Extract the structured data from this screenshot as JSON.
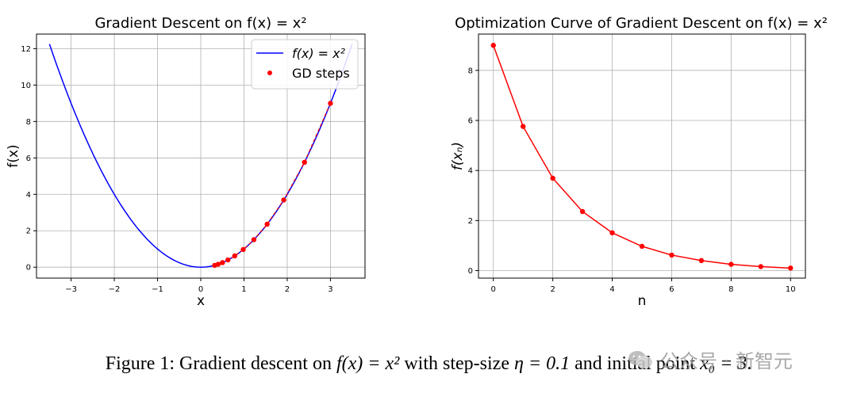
{
  "chart_data": [
    {
      "type": "line",
      "title": "Gradient Descent on f(x) = x²",
      "xlabel": "x",
      "ylabel": "f(x)",
      "xlim": [
        -3.8,
        3.8
      ],
      "ylim": [
        -0.6,
        12.8
      ],
      "xticks": [
        -3,
        -2,
        -1,
        0,
        1,
        2,
        3
      ],
      "yticks": [
        0,
        2,
        4,
        6,
        8,
        10,
        12
      ],
      "grid": true,
      "legend_position": "top-right",
      "series": [
        {
          "name": "f(x) = x²",
          "kind": "line",
          "color": "#0000ff",
          "x_range": [
            -3.5,
            3.5
          ],
          "function": "x^2"
        },
        {
          "name": "GD steps",
          "kind": "scatter",
          "color": "#ff0000",
          "x": [
            3.0,
            2.4,
            1.92,
            1.536,
            1.229,
            0.983,
            0.786,
            0.629,
            0.503,
            0.403,
            0.322
          ],
          "y": [
            9.0,
            5.76,
            3.69,
            2.36,
            1.51,
            0.97,
            0.62,
            0.4,
            0.25,
            0.16,
            0.1
          ]
        }
      ]
    },
    {
      "type": "line",
      "title": "Optimization Curve of Gradient Descent on f(x) = x²",
      "xlabel": "n",
      "ylabel": "f(xₙ)",
      "xlim": [
        -0.5,
        10.5
      ],
      "ylim": [
        -0.3,
        9.45
      ],
      "xticks": [
        0,
        2,
        4,
        6,
        8,
        10
      ],
      "yticks": [
        0,
        2,
        4,
        6,
        8
      ],
      "grid": true,
      "series": [
        {
          "color": "#ff0000",
          "x": [
            0,
            1,
            2,
            3,
            4,
            5,
            6,
            7,
            8,
            9,
            10
          ],
          "y": [
            9.0,
            5.76,
            3.69,
            2.36,
            1.51,
            0.97,
            0.62,
            0.4,
            0.25,
            0.16,
            0.1
          ]
        }
      ]
    }
  ],
  "caption": {
    "prefix": "Figure 1: Gradient descent on ",
    "fx": "f(x) = x²",
    "mid": " with step-size ",
    "eta": "η = 0.1",
    "mid2": " and initial point ",
    "x0": "x₀ = 3",
    "suffix": "."
  },
  "watermark": "公众号 · 新智元"
}
